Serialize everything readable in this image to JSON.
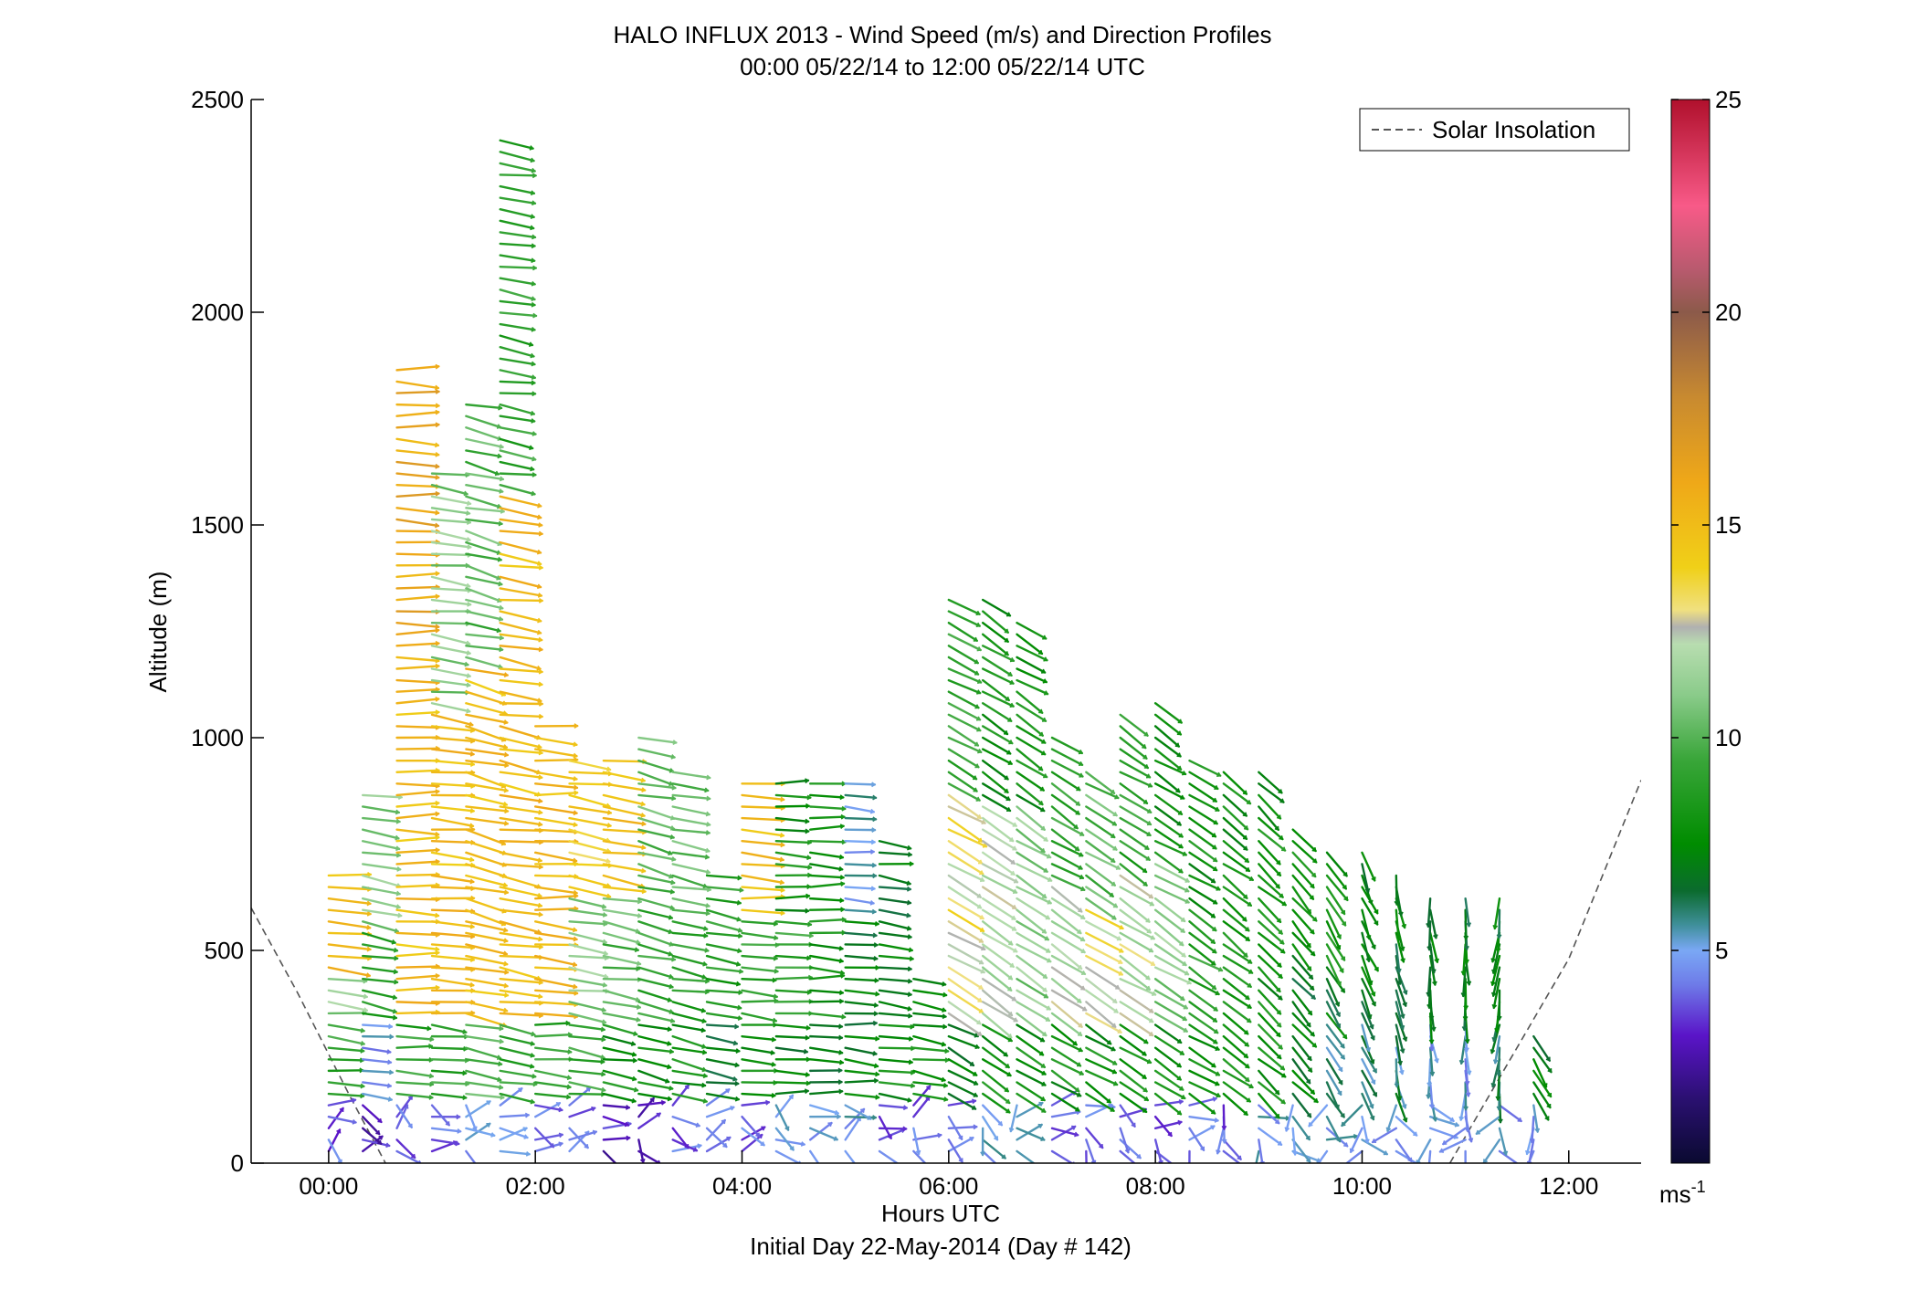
{
  "chart_data": {
    "type": "quiver",
    "title": "HALO INFLUX 2013 - Wind Speed (m/s) and Direction Profiles",
    "subtitle": "00:00 05/22/14 to 12:00 05/22/14  UTC",
    "xlabel": "Hours UTC",
    "xlabel2": "Initial Day 22-May-2014 (Day # 142)",
    "ylabel": "Altitude (m)",
    "xlim": [
      -0.75,
      12.7
    ],
    "ylim": [
      0,
      2500
    ],
    "xticks": [
      {
        "value": 0,
        "label": "00:00"
      },
      {
        "value": 2,
        "label": "02:00"
      },
      {
        "value": 4,
        "label": "04:00"
      },
      {
        "value": 6,
        "label": "06:00"
      },
      {
        "value": 8,
        "label": "08:00"
      },
      {
        "value": 10,
        "label": "10:00"
      },
      {
        "value": 12,
        "label": "12:00"
      }
    ],
    "yticks": [
      {
        "value": 0,
        "label": "0"
      },
      {
        "value": 500,
        "label": "500"
      },
      {
        "value": 1000,
        "label": "1000"
      },
      {
        "value": 1500,
        "label": "1500"
      },
      {
        "value": 2000,
        "label": "2000"
      },
      {
        "value": 2500,
        "label": "2500"
      }
    ],
    "legend": {
      "label": "Solar Insolation",
      "placement": "top-right"
    },
    "colorbar": {
      "range": [
        0,
        25
      ],
      "ticks": [
        {
          "value": 5,
          "label": "5"
        },
        {
          "value": 10,
          "label": "10"
        },
        {
          "value": 15,
          "label": "15"
        },
        {
          "value": 20,
          "label": "20"
        },
        {
          "value": 25,
          "label": "25"
        }
      ],
      "unit": "ms",
      "unit_exp": "-1",
      "colormap": [
        {
          "v": 0,
          "c": "#0a0a30"
        },
        {
          "v": 1.5,
          "c": "#2a1070"
        },
        {
          "v": 3,
          "c": "#5a14c8"
        },
        {
          "v": 4.2,
          "c": "#6e7be8"
        },
        {
          "v": 5,
          "c": "#7aa8f5"
        },
        {
          "v": 5.6,
          "c": "#3f8f9a"
        },
        {
          "v": 6.4,
          "c": "#0b6b2e"
        },
        {
          "v": 7.5,
          "c": "#008c00"
        },
        {
          "v": 9.5,
          "c": "#3aa63a"
        },
        {
          "v": 11,
          "c": "#8acb8a"
        },
        {
          "v": 12.2,
          "c": "#b8ddb0"
        },
        {
          "v": 12.6,
          "c": "#b0b0b0"
        },
        {
          "v": 13,
          "c": "#f0e080"
        },
        {
          "v": 14,
          "c": "#f0d018"
        },
        {
          "v": 16,
          "c": "#efa818"
        },
        {
          "v": 18,
          "c": "#c88a30"
        },
        {
          "v": 20,
          "c": "#8c5a4a"
        },
        {
          "v": 21,
          "c": "#b85a6e"
        },
        {
          "v": 22.5,
          "c": "#f85a88"
        },
        {
          "v": 25,
          "c": "#b0102c"
        }
      ]
    },
    "solar_insolation": {
      "x": [
        -0.75,
        -0.3,
        0.2,
        0.55,
        10.85,
        11.4,
        12.0,
        12.7
      ],
      "y": [
        600,
        400,
        160,
        0,
        0,
        230,
        480,
        900
      ]
    },
    "profiles": [
      {
        "t": 0.0,
        "top": 700,
        "bottom_speed": 3,
        "low_speed": 9,
        "mid_speed": 11,
        "upper_speed": 15,
        "dir": 95
      },
      {
        "t": 0.33,
        "top": 870,
        "bottom_speed": 2,
        "low_speed": 5,
        "mid_speed": 9,
        "upper_speed": 11,
        "dir": 100
      },
      {
        "t": 0.66,
        "top": 1880,
        "bottom_speed": 3,
        "low_speed": 9,
        "mid_speed": 15,
        "upper_speed": 16,
        "dir": 92
      },
      {
        "t": 1.0,
        "top": 1640,
        "bottom_speed": 3,
        "low_speed": 9,
        "mid_speed": 15,
        "upper_speed": 11,
        "dir": 98
      },
      {
        "t": 1.33,
        "top": 1800,
        "bottom_speed": 4,
        "low_speed": 10,
        "mid_speed": 15,
        "upper_speed": 10,
        "dir": 105
      },
      {
        "t": 1.66,
        "top": 2430,
        "bottom_speed": 4,
        "low_speed": 9,
        "mid_speed": 15,
        "upper_speed": 9,
        "dir": 100
      },
      {
        "t": 2.0,
        "top": 1030,
        "bottom_speed": 3,
        "low_speed": 9,
        "mid_speed": 15,
        "upper_speed": 15,
        "dir": 95
      },
      {
        "t": 2.33,
        "top": 970,
        "bottom_speed": 3,
        "low_speed": 9,
        "mid_speed": 11,
        "upper_speed": 14,
        "dir": 100
      },
      {
        "t": 2.66,
        "top": 960,
        "bottom_speed": 2,
        "low_speed": 8,
        "mid_speed": 10,
        "upper_speed": 15,
        "dir": 100
      },
      {
        "t": 3.0,
        "top": 1020,
        "bottom_speed": 2,
        "low_speed": 8,
        "mid_speed": 9,
        "upper_speed": 10,
        "dir": 105
      },
      {
        "t": 3.33,
        "top": 930,
        "bottom_speed": 3,
        "low_speed": 8,
        "mid_speed": 9,
        "upper_speed": 10,
        "dir": 102
      },
      {
        "t": 3.66,
        "top": 700,
        "bottom_speed": 3,
        "low_speed": 7,
        "mid_speed": 8,
        "upper_speed": 9,
        "dir": 100
      },
      {
        "t": 4.0,
        "top": 900,
        "bottom_speed": 3,
        "low_speed": 8,
        "mid_speed": 9,
        "upper_speed": 15,
        "dir": 95
      },
      {
        "t": 4.33,
        "top": 900,
        "bottom_speed": 4,
        "low_speed": 7,
        "mid_speed": 9,
        "upper_speed": 8,
        "dir": 92
      },
      {
        "t": 4.66,
        "top": 900,
        "bottom_speed": 4,
        "low_speed": 7,
        "mid_speed": 8,
        "upper_speed": 8,
        "dir": 92
      },
      {
        "t": 5.0,
        "top": 910,
        "bottom_speed": 4,
        "low_speed": 7,
        "mid_speed": 7,
        "upper_speed": 5,
        "dir": 95
      },
      {
        "t": 5.33,
        "top": 780,
        "bottom_speed": 3,
        "low_speed": 8,
        "mid_speed": 7,
        "upper_speed": 7,
        "dir": 98
      },
      {
        "t": 5.66,
        "top": 450,
        "bottom_speed": 3,
        "low_speed": 8,
        "mid_speed": 8,
        "upper_speed": 8,
        "dir": 100
      },
      {
        "t": 6.0,
        "top": 1340,
        "bottom_speed": 3,
        "low_speed": 7,
        "mid_speed": 13,
        "upper_speed": 9,
        "dir": 120
      },
      {
        "t": 6.33,
        "top": 1330,
        "bottom_speed": 4,
        "low_speed": 8,
        "mid_speed": 12,
        "upper_speed": 8,
        "dir": 125
      },
      {
        "t": 6.66,
        "top": 1290,
        "bottom_speed": 4,
        "low_speed": 8,
        "mid_speed": 11,
        "upper_speed": 8,
        "dir": 125
      },
      {
        "t": 7.0,
        "top": 1010,
        "bottom_speed": 3,
        "low_speed": 8,
        "mid_speed": 12,
        "upper_speed": 9,
        "dir": 125
      },
      {
        "t": 7.33,
        "top": 930,
        "bottom_speed": 3,
        "low_speed": 8,
        "mid_speed": 13,
        "upper_speed": 10,
        "dir": 125
      },
      {
        "t": 7.66,
        "top": 1070,
        "bottom_speed": 3,
        "low_speed": 8,
        "mid_speed": 12,
        "upper_speed": 9,
        "dir": 125
      },
      {
        "t": 8.0,
        "top": 1090,
        "bottom_speed": 3,
        "low_speed": 8,
        "mid_speed": 11,
        "upper_speed": 8,
        "dir": 125
      },
      {
        "t": 8.33,
        "top": 950,
        "bottom_speed": 3,
        "low_speed": 8,
        "mid_speed": 9,
        "upper_speed": 8,
        "dir": 125
      },
      {
        "t": 8.66,
        "top": 920,
        "bottom_speed": 3,
        "low_speed": 8,
        "mid_speed": 8,
        "upper_speed": 8,
        "dir": 130
      },
      {
        "t": 9.0,
        "top": 930,
        "bottom_speed": 4,
        "low_speed": 8,
        "mid_speed": 8,
        "upper_speed": 8,
        "dir": 135
      },
      {
        "t": 9.33,
        "top": 790,
        "bottom_speed": 4,
        "low_speed": 7,
        "mid_speed": 7,
        "upper_speed": 8,
        "dir": 140
      },
      {
        "t": 9.66,
        "top": 740,
        "bottom_speed": 4,
        "low_speed": 6,
        "mid_speed": 7,
        "upper_speed": 8,
        "dir": 150
      },
      {
        "t": 10.0,
        "top": 740,
        "bottom_speed": 4,
        "low_speed": 6,
        "mid_speed": 7,
        "upper_speed": 7,
        "dir": 160
      },
      {
        "t": 10.33,
        "top": 680,
        "bottom_speed": 4,
        "low_speed": 6,
        "mid_speed": 7,
        "upper_speed": 7,
        "dir": 170
      },
      {
        "t": 10.66,
        "top": 640,
        "bottom_speed": 4,
        "low_speed": 5,
        "mid_speed": 7,
        "upper_speed": 7,
        "dir": 175
      },
      {
        "t": 11.0,
        "top": 640,
        "bottom_speed": 4,
        "low_speed": 5,
        "mid_speed": 7,
        "upper_speed": 7,
        "dir": 180
      },
      {
        "t": 11.33,
        "top": 640,
        "bottom_speed": 4,
        "low_speed": 6,
        "mid_speed": 7,
        "upper_speed": 7,
        "dir": 185
      },
      {
        "t": 11.66,
        "top": 300,
        "bottom_speed": 4,
        "low_speed": 7,
        "mid_speed": 7,
        "upper_speed": 7,
        "dir": 150
      }
    ]
  }
}
